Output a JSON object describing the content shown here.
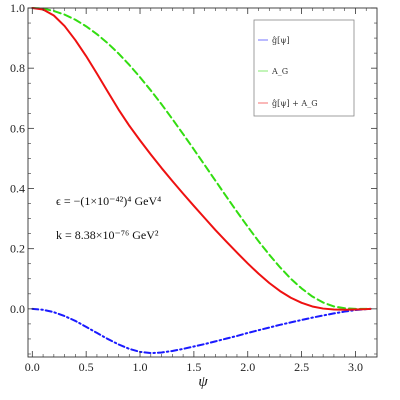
{
  "chart_data": {
    "type": "line",
    "xlabel": "ψ",
    "ylabel": "",
    "xlim": [
      -0.04,
      3.2
    ],
    "ylim": [
      -0.16,
      1.0
    ],
    "xticks": [
      0.0,
      0.5,
      1.0,
      1.5,
      2.0,
      2.5,
      3.0
    ],
    "xtick_labels": [
      "0.0",
      "0.5",
      "1.0",
      "1.5",
      "2.0",
      "2.5",
      "3.0"
    ],
    "yticks": [
      0.0,
      0.2,
      0.4,
      0.6,
      0.8,
      1.0
    ],
    "ytick_labels": [
      "0.0",
      "0.2",
      "0.4",
      "0.6",
      "0.8",
      "1.0"
    ],
    "legend_position": "top-right",
    "grid": false,
    "series": [
      {
        "name": "ĝ[ψ]",
        "color": "#1a1aff",
        "dash": "dash-dot",
        "x": [
          0.0,
          0.1,
          0.2,
          0.3,
          0.4,
          0.5,
          0.6,
          0.7,
          0.8,
          0.9,
          1.0,
          1.1,
          1.2,
          1.3,
          1.4,
          1.5,
          1.6,
          1.7,
          1.8,
          1.9,
          2.0,
          2.1,
          2.2,
          2.3,
          2.4,
          2.5,
          2.6,
          2.7,
          2.8,
          2.9,
          3.0,
          3.1,
          3.14
        ],
        "y": [
          0.0,
          -0.003,
          -0.011,
          -0.024,
          -0.04,
          -0.06,
          -0.08,
          -0.1,
          -0.118,
          -0.133,
          -0.143,
          -0.147,
          -0.145,
          -0.14,
          -0.133,
          -0.125,
          -0.117,
          -0.108,
          -0.099,
          -0.09,
          -0.08,
          -0.071,
          -0.062,
          -0.053,
          -0.045,
          -0.037,
          -0.029,
          -0.022,
          -0.015,
          -0.009,
          -0.004,
          -0.001,
          0.0
        ]
      },
      {
        "name": "A_G",
        "color": "#33dd11",
        "dash": "dashed",
        "x": [
          0.0,
          0.1,
          0.2,
          0.3,
          0.4,
          0.5,
          0.6,
          0.7,
          0.8,
          0.9,
          1.0,
          1.1,
          1.2,
          1.3,
          1.4,
          1.5,
          1.6,
          1.7,
          1.8,
          1.9,
          2.0,
          2.1,
          2.2,
          2.3,
          2.4,
          2.5,
          2.6,
          2.7,
          2.8,
          2.9,
          3.0,
          3.1,
          3.14
        ],
        "y": [
          1.0,
          0.998,
          0.99,
          0.978,
          0.961,
          0.939,
          0.913,
          0.883,
          0.849,
          0.811,
          0.77,
          0.726,
          0.68,
          0.631,
          0.581,
          0.53,
          0.478,
          0.426,
          0.374,
          0.323,
          0.273,
          0.225,
          0.18,
          0.138,
          0.1,
          0.068,
          0.041,
          0.021,
          0.008,
          0.002,
          0.0,
          0.0,
          0.0
        ]
      },
      {
        "name": "ĝ[ψ] + A_G",
        "color": "#ee1111",
        "dash": "solid",
        "x": [
          0.0,
          0.1,
          0.2,
          0.3,
          0.4,
          0.5,
          0.6,
          0.7,
          0.8,
          0.9,
          1.0,
          1.1,
          1.2,
          1.3,
          1.4,
          1.5,
          1.6,
          1.7,
          1.8,
          1.9,
          2.0,
          2.1,
          2.2,
          2.3,
          2.4,
          2.5,
          2.6,
          2.7,
          2.8,
          2.9,
          3.0,
          3.1,
          3.14
        ],
        "y": [
          1.0,
          0.995,
          0.975,
          0.94,
          0.893,
          0.84,
          0.782,
          0.722,
          0.663,
          0.609,
          0.56,
          0.513,
          0.468,
          0.425,
          0.383,
          0.342,
          0.302,
          0.262,
          0.224,
          0.187,
          0.151,
          0.117,
          0.086,
          0.059,
          0.037,
          0.02,
          0.008,
          0.001,
          -0.002,
          -0.003,
          -0.002,
          -0.001,
          0.0
        ]
      }
    ]
  },
  "legend": {
    "items": [
      {
        "label": "ĝ[ψ]",
        "color": "#1a1aff"
      },
      {
        "label": "A_G",
        "color": "#33dd11"
      },
      {
        "label": "ĝ[ψ] + A_G",
        "color": "#ee1111"
      }
    ]
  },
  "annotations": {
    "epsilon_line": "ϵ = −(1×10⁻⁴²)⁴ GeV⁴",
    "k_line": "k = 8.38×10⁻⁷⁶ GeV²"
  }
}
